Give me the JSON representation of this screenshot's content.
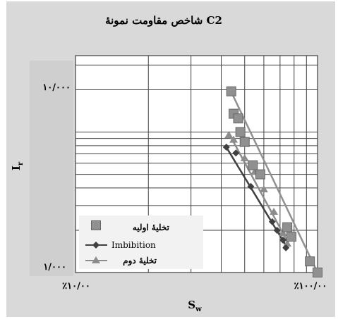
{
  "chart_data": {
    "type": "scatter",
    "title": "شاخص مقاومت نمونهٔ C2",
    "xlabel_main": "S",
    "xlabel_sub": "w",
    "ylabel_main": "I",
    "ylabel_sub": "r",
    "x_scale": "log",
    "y_scale": "log",
    "xlim": [
      10,
      100
    ],
    "ylim": [
      1,
      35
    ],
    "x_ticks": [
      {
        "value": 10,
        "label": "٪۱۰/۰۰"
      },
      {
        "value": 100,
        "label": "٪۱۰۰/۰۰"
      }
    ],
    "y_ticks": [
      {
        "value": 1,
        "label": "۱/۰۰۰"
      },
      {
        "value": 10,
        "label": "۱۰/۰۰۰"
      }
    ],
    "grid": true,
    "legend_position": "bottom-left",
    "colors": {
      "background": "#d9d9d9",
      "plot": "#ffffff",
      "legend": "#f2f2f2",
      "grid": "#404040",
      "primary_drainage": "#909090",
      "imbibition": "#404040",
      "secondary_drainage": "#8c8c8c"
    },
    "series": [
      {
        "name": "تخلیهٔ اولیه",
        "marker": "square-icon",
        "x": [
          44,
          45,
          47,
          48,
          50,
          54,
          58,
          75,
          78,
          93,
          100
        ],
        "y": [
          19.5,
          13.5,
          12.5,
          10.0,
          8.5,
          5.8,
          5.0,
          2.1,
          1.8,
          1.2,
          1.0
        ],
        "fit": {
          "x": [
            43,
            100
          ],
          "y": [
            21,
            1.0
          ]
        }
      },
      {
        "name": "Imbibition",
        "marker": "diamond-icon",
        "x": [
          42,
          46,
          53,
          65,
          68,
          72,
          74
        ],
        "y": [
          7.8,
          7.1,
          4.1,
          2.3,
          2.0,
          1.7,
          1.5
        ],
        "fit": {
          "x": [
            42,
            75
          ],
          "y": [
            7.8,
            1.5
          ]
        }
      },
      {
        "name": "تخلیهٔ دوم",
        "marker": "triangle-icon",
        "x": [
          43,
          45,
          50,
          55,
          60,
          66,
          72,
          75
        ],
        "y": [
          9.5,
          8.8,
          6.5,
          5.2,
          3.9,
          2.7,
          1.9,
          1.6
        ],
        "fit": {
          "x": [
            43,
            76
          ],
          "y": [
            9.8,
            1.6
          ]
        }
      }
    ]
  }
}
